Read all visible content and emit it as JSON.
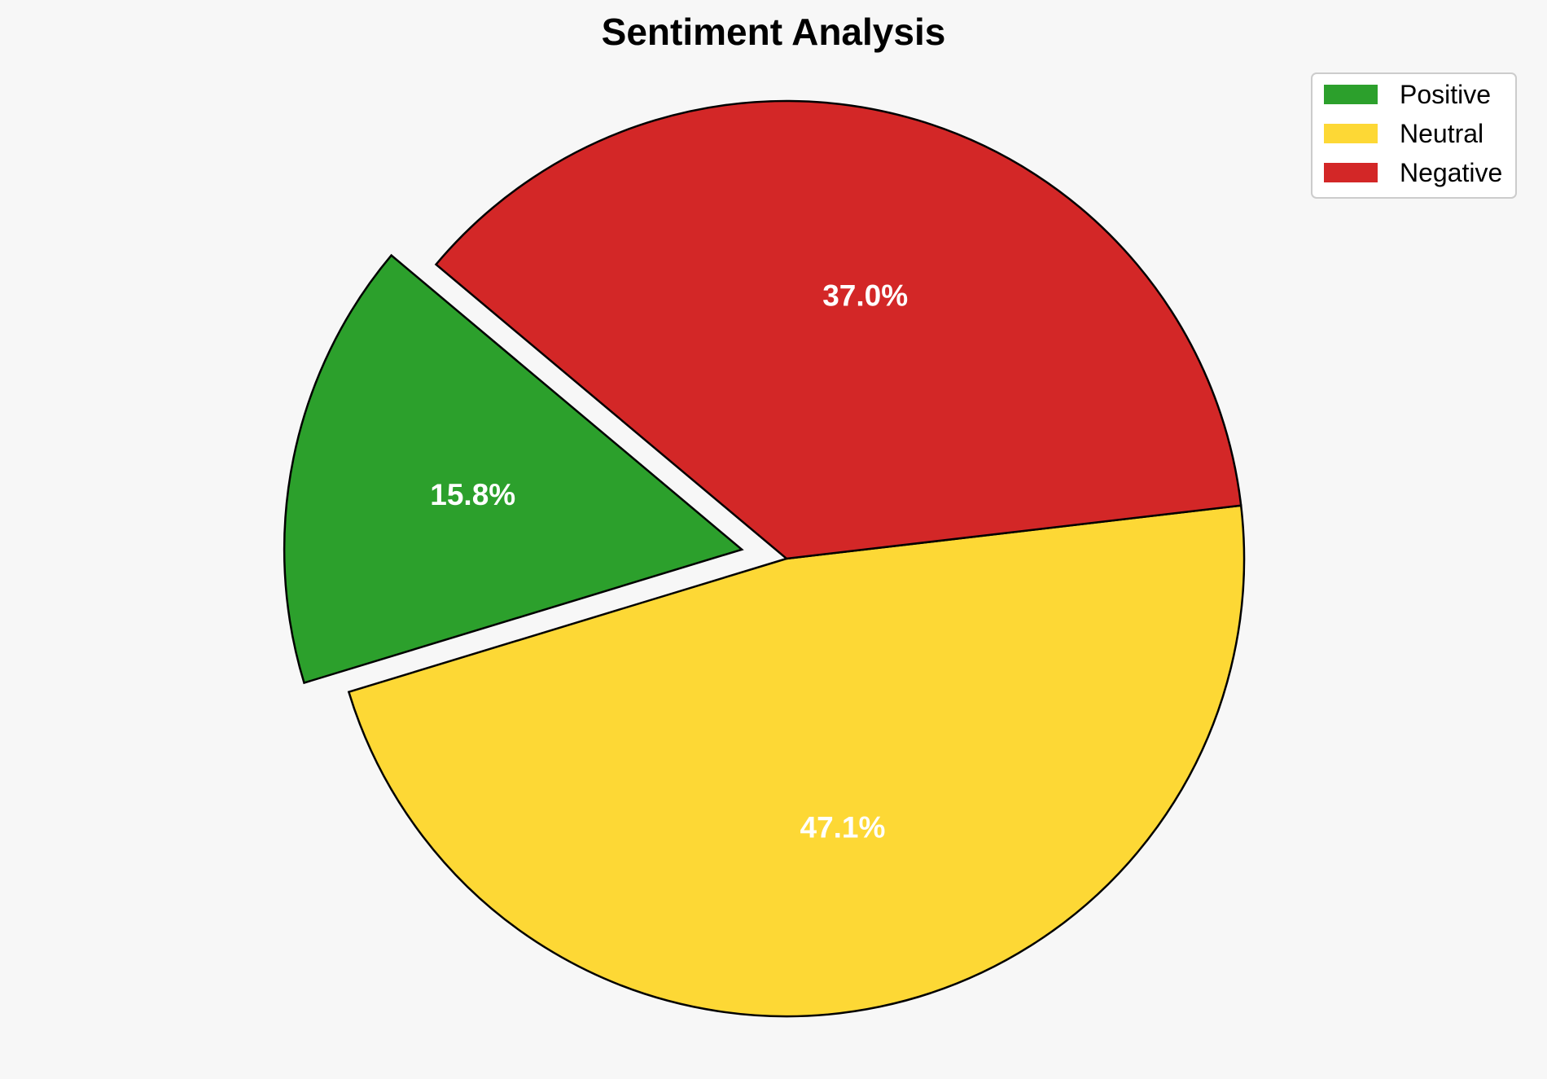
{
  "chart_data": {
    "type": "pie",
    "title": "Sentiment Analysis",
    "categories": [
      "Positive",
      "Neutral",
      "Negative"
    ],
    "values": [
      15.8,
      47.1,
      37.0
    ],
    "value_labels": [
      "15.8%",
      "47.1%",
      "37.0%"
    ],
    "colors": [
      "#2ca02c",
      "#fdd835",
      "#d32727"
    ],
    "exploded": [
      true,
      false,
      false
    ],
    "slice_edge_color": "#000000",
    "label_color": "#ffffff",
    "legend": {
      "placement": "top-right",
      "entries": [
        "Positive",
        "Neutral",
        "Negative"
      ]
    }
  }
}
